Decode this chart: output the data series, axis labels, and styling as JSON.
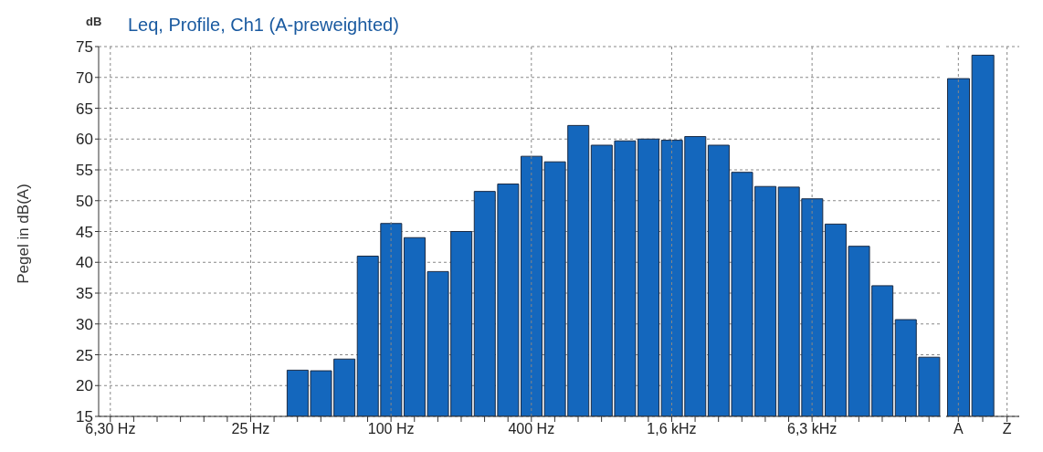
{
  "chart_data": [
    {
      "type": "bar",
      "title": "Leq, Profile, Ch1 (A-preweighted)",
      "ylabel": "Pegel in dB(A)",
      "annotations": [
        "dB"
      ],
      "categories": [
        "6,30 Hz",
        null,
        null,
        null,
        null,
        null,
        "25 Hz",
        null,
        null,
        null,
        null,
        null,
        "100 Hz",
        null,
        null,
        null,
        null,
        null,
        "400 Hz",
        null,
        null,
        null,
        null,
        null,
        "1,6 kHz",
        null,
        null,
        null,
        null,
        null,
        "6,3 kHz",
        null,
        null,
        null,
        null,
        null
      ],
      "values": [
        null,
        null,
        null,
        null,
        null,
        null,
        null,
        null,
        22.5,
        22.4,
        24.3,
        41,
        46.3,
        44,
        38.5,
        45,
        51.5,
        52.7,
        57.2,
        56.3,
        62.2,
        59,
        59.7,
        60,
        59.8,
        60.4,
        59,
        54.6,
        52.3,
        52.2,
        50.3,
        46.2,
        42.6,
        36.2,
        30.7,
        24.6
      ],
      "color": "#1467bd",
      "ylim": [
        15,
        75
      ],
      "yticks": [
        15,
        20,
        25,
        30,
        35,
        40,
        45,
        50,
        55,
        60,
        65,
        70,
        75
      ],
      "grid": true
    },
    {
      "type": "bar",
      "categories": [
        "A",
        null,
        "Z"
      ],
      "values": [
        69.8,
        73.6,
        null
      ],
      "color": "#1467bd",
      "ylim": [
        15,
        75
      ],
      "yticks": [
        15,
        20,
        25,
        30,
        35,
        40,
        45,
        50,
        55,
        60,
        65,
        70,
        75
      ],
      "grid": true,
      "tick_labels": "x"
    }
  ]
}
